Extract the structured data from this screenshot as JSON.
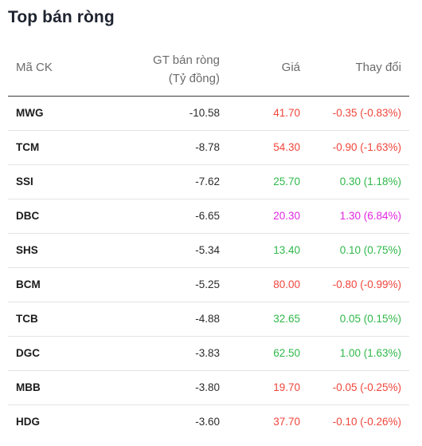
{
  "title": "Top bán ròng",
  "columns": {
    "code": "Mã CK",
    "value_line1": "GT bán ròng",
    "value_line2": "(Tỷ đồng)",
    "price": "Giá",
    "change": "Thay đổi"
  },
  "colors": {
    "down": "#f0453b",
    "up": "#2fb84a",
    "ceiling": "#e028e0"
  },
  "rows": [
    {
      "code": "MWG",
      "value": "-10.58",
      "price": "41.70",
      "change": "-0.35 (-0.83%)",
      "trend": "red"
    },
    {
      "code": "TCM",
      "value": "-8.78",
      "price": "54.30",
      "change": "-0.90 (-1.63%)",
      "trend": "red"
    },
    {
      "code": "SSI",
      "value": "-7.62",
      "price": "25.70",
      "change": "0.30 (1.18%)",
      "trend": "green"
    },
    {
      "code": "DBC",
      "value": "-6.65",
      "price": "20.30",
      "change": "1.30 (6.84%)",
      "trend": "purple"
    },
    {
      "code": "SHS",
      "value": "-5.34",
      "price": "13.40",
      "change": "0.10 (0.75%)",
      "trend": "green"
    },
    {
      "code": "BCM",
      "value": "-5.25",
      "price": "80.00",
      "change": "-0.80 (-0.99%)",
      "trend": "red"
    },
    {
      "code": "TCB",
      "value": "-4.88",
      "price": "32.65",
      "change": "0.05 (0.15%)",
      "trend": "green"
    },
    {
      "code": "DGC",
      "value": "-3.83",
      "price": "62.50",
      "change": "1.00 (1.63%)",
      "trend": "green"
    },
    {
      "code": "MBB",
      "value": "-3.80",
      "price": "19.70",
      "change": "-0.05 (-0.25%)",
      "trend": "red"
    },
    {
      "code": "HDG",
      "value": "-3.60",
      "price": "37.70",
      "change": "-0.10 (-0.26%)",
      "trend": "red"
    }
  ]
}
